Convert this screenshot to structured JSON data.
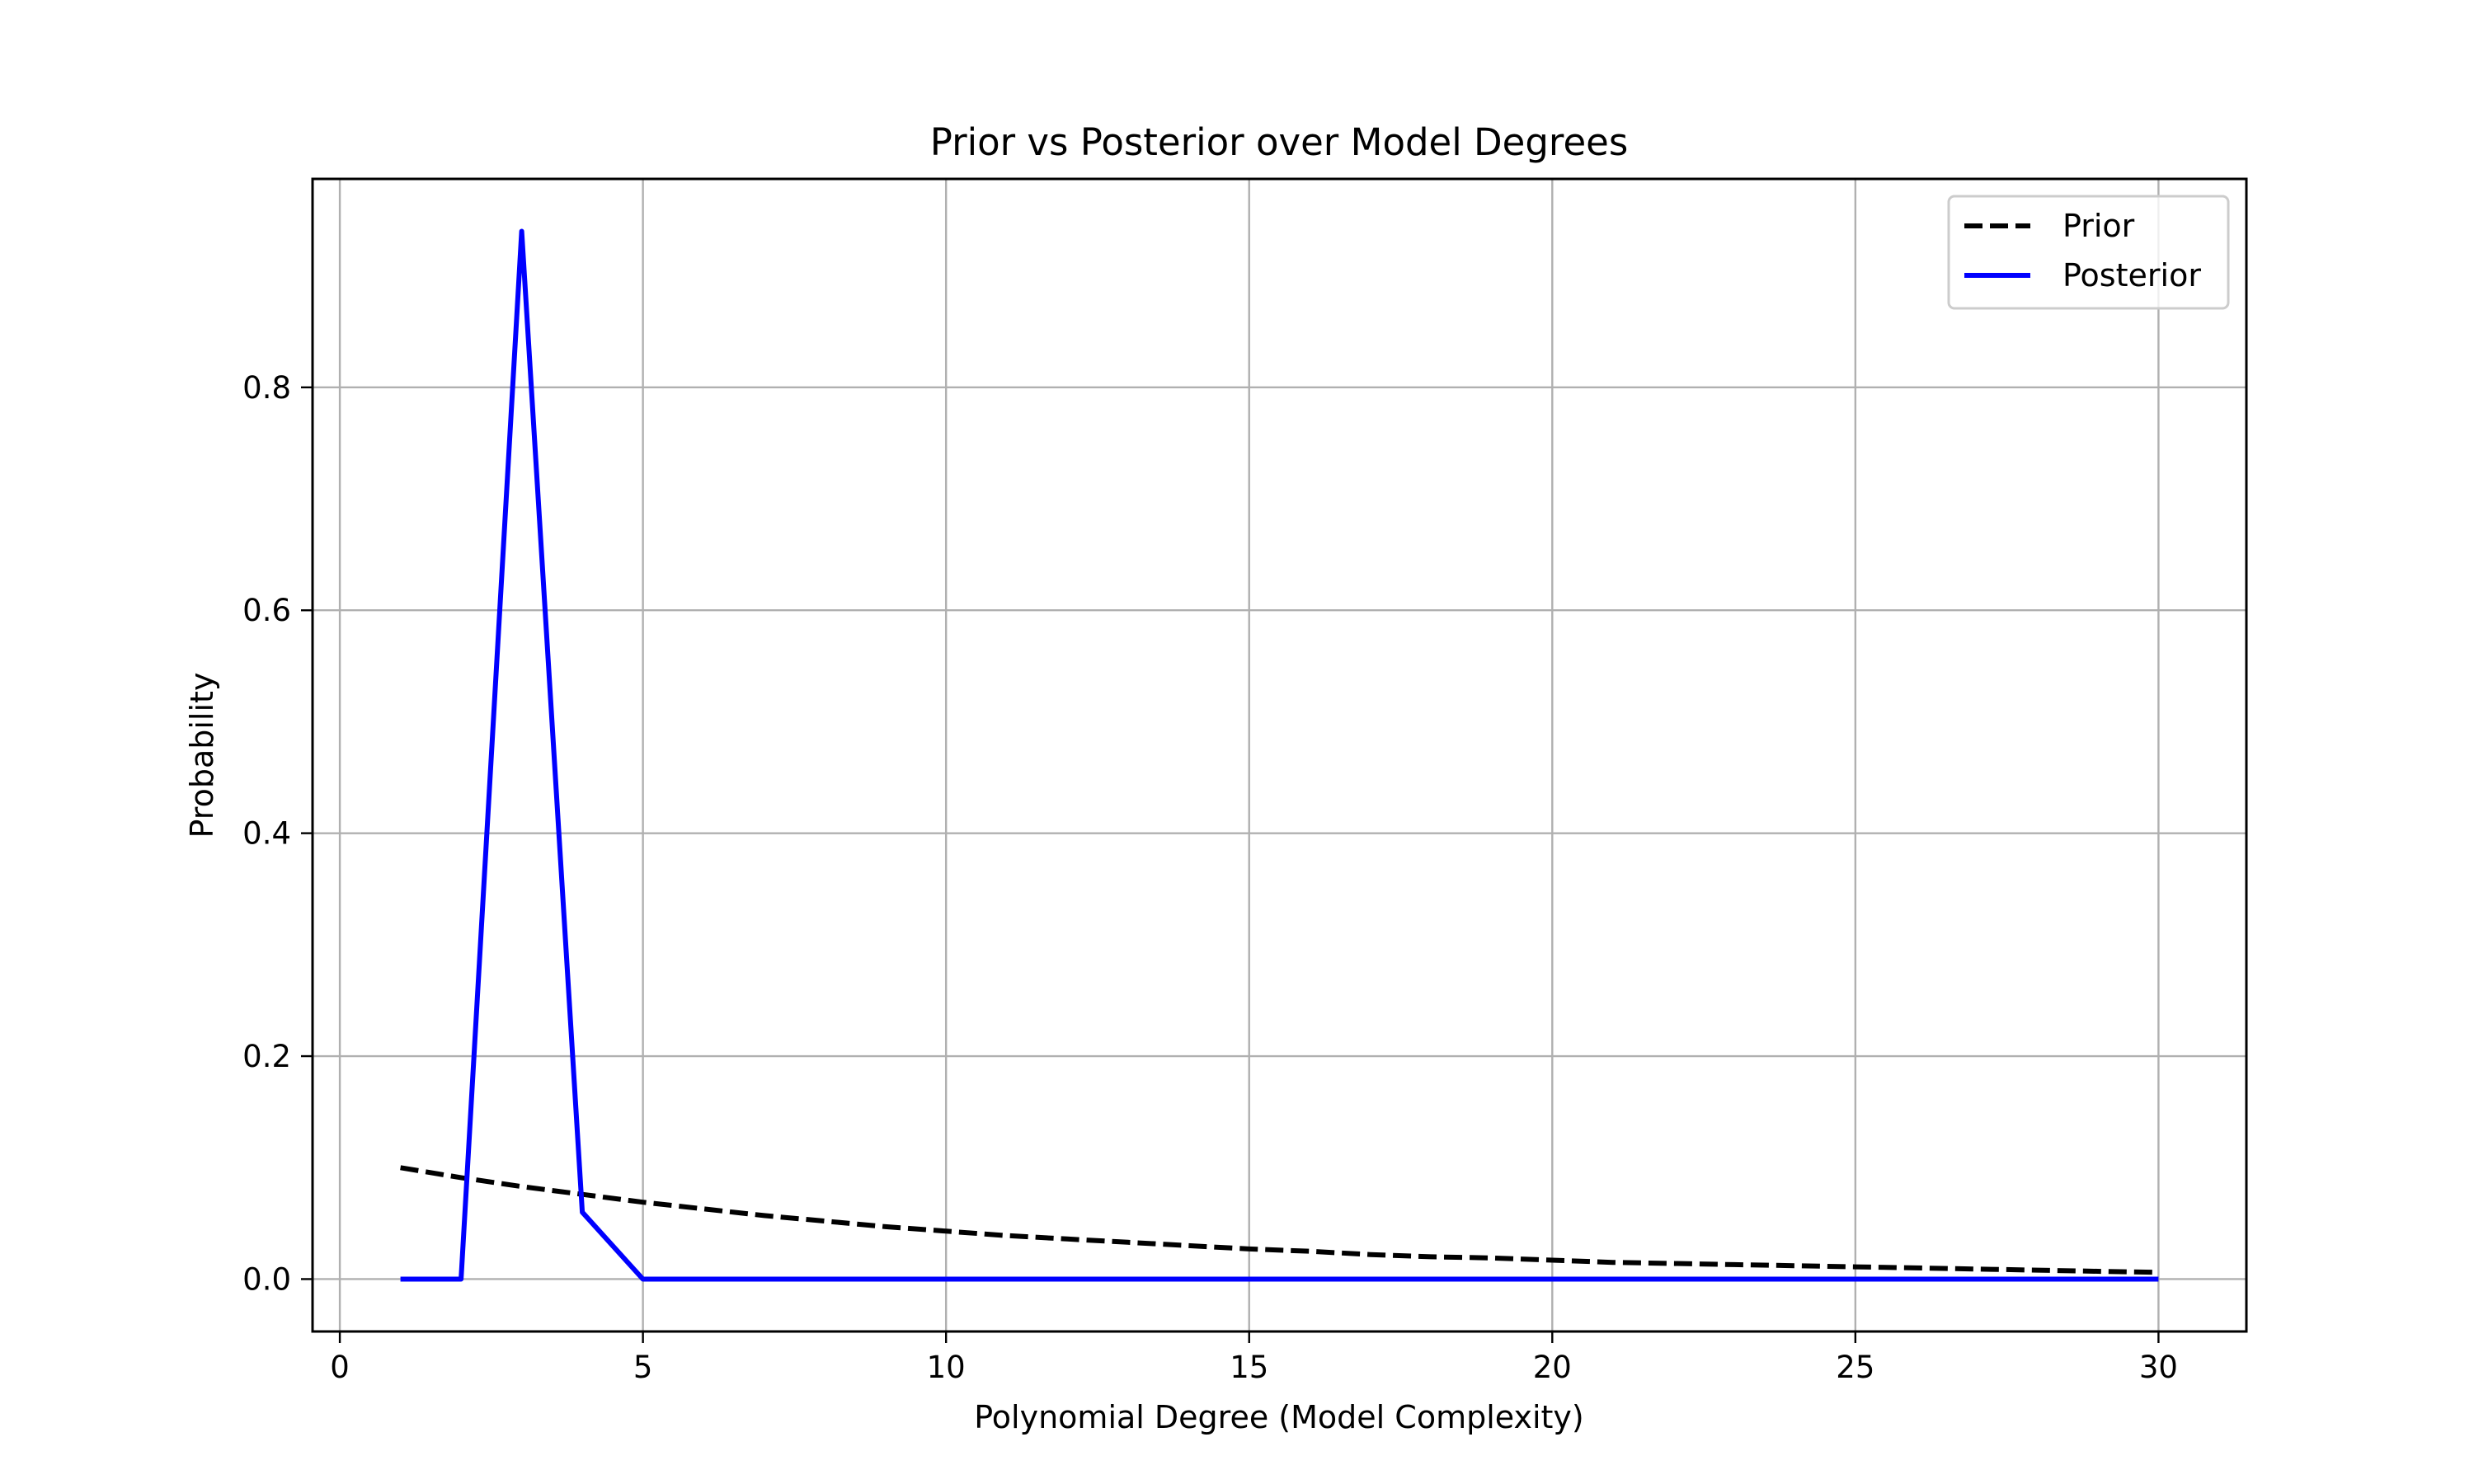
{
  "chart_data": {
    "type": "line",
    "title": "Prior vs Posterior over Model Degrees",
    "xlabel": "Polynomial Degree (Model Complexity)",
    "ylabel": "Probability",
    "xlim": [
      -0.45,
      31.45
    ],
    "ylim": [
      -0.047,
      0.987
    ],
    "x_ticks": [
      0,
      5,
      10,
      15,
      20,
      25,
      30
    ],
    "y_ticks": [
      0.0,
      0.2,
      0.4,
      0.6,
      0.8
    ],
    "x_tick_labels": [
      "0",
      "5",
      "10",
      "15",
      "20",
      "25",
      "30"
    ],
    "y_tick_labels": [
      "0.0",
      "0.2",
      "0.4",
      "0.6",
      "0.8"
    ],
    "grid": true,
    "legend_position": "top-right",
    "x": [
      1,
      2,
      3,
      4,
      5,
      6,
      7,
      8,
      9,
      10,
      11,
      12,
      13,
      14,
      15,
      16,
      17,
      18,
      19,
      20,
      21,
      22,
      23,
      24,
      25,
      26,
      27,
      28,
      29,
      30
    ],
    "series": [
      {
        "name": "Prior",
        "color": "#000000",
        "dashed": true,
        "values": [
          0.1,
          0.091,
          0.083,
          0.076,
          0.069,
          0.063,
          0.057,
          0.052,
          0.047,
          0.043,
          0.039,
          0.036,
          0.033,
          0.03,
          0.027,
          0.025,
          0.022,
          0.02,
          0.019,
          0.017,
          0.015,
          0.014,
          0.013,
          0.012,
          0.011,
          0.01,
          0.009,
          0.008,
          0.007,
          0.006
        ]
      },
      {
        "name": "Posterior",
        "color": "#0000ff",
        "dashed": false,
        "values": [
          0.0,
          0.0,
          0.94,
          0.06,
          0.0,
          0.0,
          0.0,
          0.0,
          0.0,
          0.0,
          0.0,
          0.0,
          0.0,
          0.0,
          0.0,
          0.0,
          0.0,
          0.0,
          0.0,
          0.0,
          0.0,
          0.0,
          0.0,
          0.0,
          0.0,
          0.0,
          0.0,
          0.0,
          0.0,
          0.0
        ]
      }
    ]
  }
}
